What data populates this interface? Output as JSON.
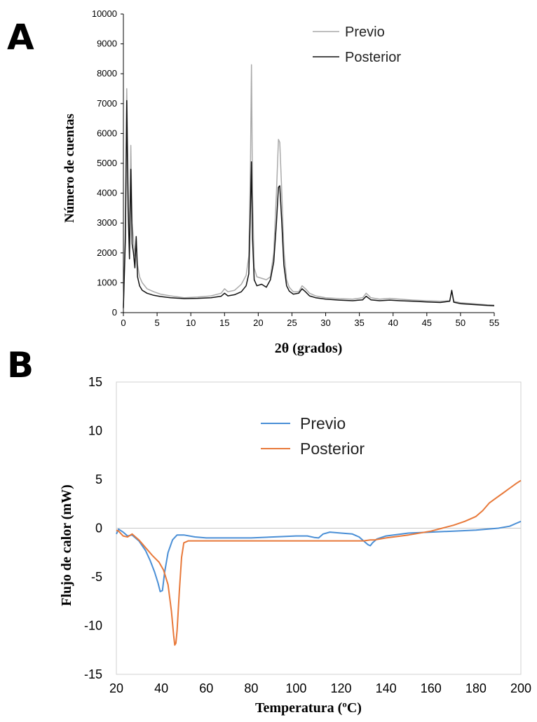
{
  "panels": {
    "a_letter": "A",
    "b_letter": "B"
  },
  "chart_data": [
    {
      "type": "line",
      "xlabel": "2θ (grados)",
      "ylabel": "Número de cuentas",
      "xlim": [
        0,
        55
      ],
      "ylim": [
        0,
        10000
      ],
      "xticks": [
        "0",
        "5",
        "10",
        "15",
        "20",
        "25",
        "30",
        "35",
        "40",
        "45",
        "50",
        "55"
      ],
      "yticks": [
        "0",
        "1000",
        "2000",
        "3000",
        "4000",
        "5000",
        "6000",
        "7000",
        "8000",
        "9000",
        "10000"
      ],
      "legend_position": "top-right",
      "series": [
        {
          "name": "Previo",
          "color": "#aaaaaa",
          "x": [
            0,
            0.3,
            0.5,
            0.7,
            0.9,
            1.1,
            1.3,
            1.5,
            1.7,
            1.9,
            2.1,
            2.4,
            2.8,
            3.5,
            4.5,
            5.5,
            7,
            9,
            11,
            13,
            14.5,
            15,
            15.5,
            16.5,
            17.5,
            18.2,
            18.6,
            18.85,
            19.0,
            19.15,
            19.4,
            19.8,
            20.5,
            21.2,
            21.8,
            22.3,
            22.7,
            23.0,
            23.2,
            23.5,
            23.8,
            24.2,
            24.6,
            25.2,
            26.0,
            26.5,
            27.0,
            27.6,
            28.5,
            30,
            32,
            34,
            35.5,
            36,
            36.7,
            38,
            39.5,
            41,
            43,
            45,
            47,
            48.4,
            48.7,
            49.0,
            50,
            52,
            54,
            55
          ],
          "y": [
            200,
            3000,
            7500,
            4500,
            2200,
            5600,
            3000,
            2500,
            1900,
            2500,
            1600,
            1200,
            1000,
            800,
            700,
            620,
            560,
            500,
            520,
            560,
            650,
            800,
            700,
            750,
            950,
            1250,
            1900,
            5000,
            8300,
            4000,
            1500,
            1200,
            1150,
            1100,
            1200,
            2000,
            4000,
            5800,
            5700,
            4000,
            2100,
            1100,
            850,
            700,
            700,
            900,
            800,
            650,
            560,
            500,
            470,
            450,
            500,
            650,
            500,
            450,
            480,
            450,
            420,
            400,
            380,
            400,
            700,
            380,
            330,
            300,
            260,
            250
          ]
        },
        {
          "name": "Posterior",
          "color": "#111111",
          "x": [
            0,
            0.3,
            0.5,
            0.7,
            0.9,
            1.1,
            1.3,
            1.5,
            1.7,
            1.9,
            2.1,
            2.4,
            2.8,
            3.5,
            4.5,
            5.5,
            7,
            9,
            11,
            13,
            14.5,
            15,
            15.5,
            16.5,
            17.5,
            18.2,
            18.6,
            18.85,
            19.0,
            19.15,
            19.4,
            19.8,
            20.5,
            21.2,
            21.8,
            22.3,
            22.7,
            23.0,
            23.2,
            23.5,
            23.8,
            24.2,
            24.6,
            25.2,
            26.0,
            26.5,
            27.0,
            27.6,
            28.5,
            30,
            32,
            34,
            35.5,
            36,
            36.7,
            38,
            39.5,
            41,
            43,
            45,
            47,
            48.4,
            48.7,
            49.0,
            50,
            52,
            54,
            55
          ],
          "y": [
            150,
            2500,
            7100,
            3500,
            1800,
            4800,
            2300,
            2000,
            1500,
            2550,
            1200,
            900,
            750,
            650,
            580,
            540,
            500,
            470,
            480,
            500,
            550,
            650,
            560,
            600,
            700,
            900,
            1300,
            3500,
            5050,
            2500,
            1100,
            900,
            950,
            850,
            1100,
            1700,
            3000,
            4200,
            4250,
            3000,
            1600,
            900,
            720,
            620,
            650,
            800,
            700,
            560,
            500,
            450,
            420,
            400,
            430,
            550,
            430,
            400,
            420,
            400,
            380,
            360,
            340,
            380,
            750,
            350,
            300,
            270,
            240,
            230
          ]
        }
      ]
    },
    {
      "type": "line",
      "xlabel": "Temperatura (ºC)",
      "ylabel": "Flujo de calor (mW)",
      "xlim": [
        20,
        200
      ],
      "ylim": [
        -15,
        15
      ],
      "xticks": [
        "20",
        "40",
        "60",
        "80",
        "100",
        "120",
        "140",
        "160",
        "180",
        "200"
      ],
      "yticks": [
        "15",
        "10",
        "5",
        "0",
        "-5",
        "-10",
        "-15"
      ],
      "zero_line": true,
      "legend_position": "top-center",
      "series": [
        {
          "name": "Previo",
          "color": "#4a8fd6",
          "x": [
            20,
            21,
            23,
            25,
            27,
            30,
            33,
            35,
            37,
            38.5,
            39.5,
            40.5,
            41.5,
            43,
            45,
            47,
            50,
            55,
            60,
            80,
            100,
            105,
            108,
            110,
            112,
            115,
            120,
            125,
            128,
            130,
            132,
            133,
            134,
            136,
            140,
            150,
            160,
            170,
            180,
            190,
            195,
            198,
            200
          ],
          "y": [
            -0.6,
            -0.1,
            -0.4,
            -0.8,
            -0.7,
            -1.3,
            -2.3,
            -3.3,
            -4.5,
            -5.6,
            -6.5,
            -6.4,
            -4.5,
            -2.5,
            -1.2,
            -0.7,
            -0.7,
            -0.9,
            -1.0,
            -1.0,
            -0.8,
            -0.8,
            -0.95,
            -1.0,
            -0.6,
            -0.4,
            -0.5,
            -0.6,
            -0.9,
            -1.3,
            -1.7,
            -1.8,
            -1.5,
            -1.1,
            -0.8,
            -0.5,
            -0.4,
            -0.3,
            -0.2,
            0.0,
            0.2,
            0.5,
            0.7
          ]
        },
        {
          "name": "Posterior",
          "color": "#e8793a",
          "x": [
            20,
            21,
            23,
            25,
            27,
            30,
            33,
            36,
            39,
            41,
            43,
            44.5,
            45.5,
            46.0,
            46.5,
            47,
            48,
            49,
            50,
            52,
            55,
            60,
            80,
            100,
            120,
            130,
            133,
            135,
            140,
            150,
            160,
            165,
            170,
            175,
            180,
            183,
            186,
            189,
            192,
            195,
            198,
            200
          ],
          "y": [
            -0.2,
            -0.3,
            -0.8,
            -0.9,
            -0.6,
            -1.2,
            -2.0,
            -2.8,
            -3.5,
            -4.3,
            -5.8,
            -8.5,
            -11.0,
            -12.0,
            -11.8,
            -10.5,
            -6.5,
            -3.0,
            -1.5,
            -1.3,
            -1.3,
            -1.3,
            -1.3,
            -1.3,
            -1.3,
            -1.3,
            -1.2,
            -1.2,
            -1.0,
            -0.7,
            -0.3,
            0.0,
            0.3,
            0.7,
            1.2,
            1.8,
            2.6,
            3.1,
            3.6,
            4.1,
            4.6,
            4.9
          ]
        }
      ]
    }
  ]
}
